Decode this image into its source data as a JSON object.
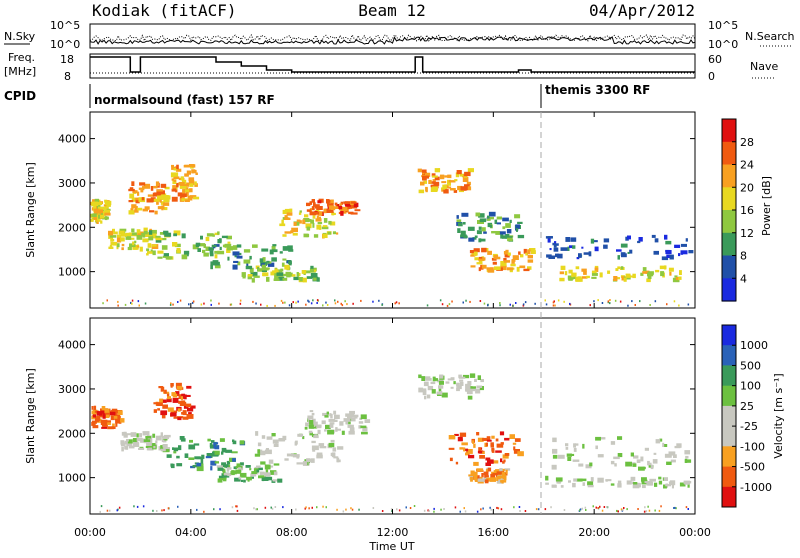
{
  "header": {
    "station": "Kodiak (fitACF)",
    "beam": "Beam 12",
    "date": "04/Apr/2012"
  },
  "strip_labels": {
    "nsky": "N.Sky",
    "nsearch": "N.Search",
    "freq_line1": "Freq.",
    "freq_line2": "[MHz]",
    "nave": "Nave",
    "cpid": "CPID"
  },
  "strip_ticks": {
    "noise_left_top": "10^5",
    "noise_left_bottom": "10^0",
    "noise_right_top": "10^5",
    "noise_right_bottom": "10^0",
    "freq_top": "18",
    "freq_bottom": "8",
    "nave_top": "60",
    "nave_bottom": "0"
  },
  "cpid": {
    "mode1": "normalsound (fast) 157 RF",
    "mode2": "themis 3300 RF"
  },
  "chart_data": [
    {
      "type": "heatmap",
      "panel": "power",
      "ylabel": "Slant Range [km]",
      "colorbar_label": "Power [dB]",
      "colorbar_ticks": [
        "28",
        "24",
        "20",
        "16",
        "12",
        "8",
        "4"
      ],
      "colormap": [
        "#e01010",
        "#f05a10",
        "#f8a020",
        "#e8d820",
        "#8fc840",
        "#3a9a5a",
        "#2050a8",
        "#1a2ae0"
      ],
      "y_ticks": [
        "4000",
        "3000",
        "2000",
        "1000"
      ],
      "ylim": [
        180,
        4600
      ],
      "features": [
        {
          "t0": 0.0,
          "t1": 0.7,
          "r0": 2100,
          "r1": 2600,
          "level": 3
        },
        {
          "t0": 0.7,
          "t1": 2.5,
          "r0": 1500,
          "r1": 2000,
          "level": 3
        },
        {
          "t0": 1.5,
          "t1": 3.0,
          "r0": 2300,
          "r1": 3000,
          "level": 2
        },
        {
          "t0": 2.2,
          "t1": 5.5,
          "r0": 1300,
          "r1": 1900,
          "level": 4
        },
        {
          "t0": 3.2,
          "t1": 4.2,
          "r0": 2600,
          "r1": 3400,
          "level": 2
        },
        {
          "t0": 4.5,
          "t1": 8.0,
          "r0": 1100,
          "r1": 1600,
          "level": 5
        },
        {
          "t0": 6.0,
          "t1": 9.0,
          "r0": 800,
          "r1": 1100,
          "level": 4
        },
        {
          "t0": 7.5,
          "t1": 9.8,
          "r0": 1800,
          "r1": 2400,
          "level": 3
        },
        {
          "t0": 8.5,
          "t1": 10.5,
          "r0": 2300,
          "r1": 2600,
          "level": 1
        },
        {
          "t0": 13.0,
          "t1": 15.0,
          "r0": 2800,
          "r1": 3300,
          "level": 2
        },
        {
          "t0": 14.5,
          "t1": 17.0,
          "r0": 1700,
          "r1": 2300,
          "level": 5
        },
        {
          "t0": 15.0,
          "t1": 17.5,
          "r0": 1000,
          "r1": 1500,
          "level": 2
        },
        {
          "t0": 18.0,
          "t1": 24.0,
          "r0": 1300,
          "r1": 1800,
          "level": 6
        },
        {
          "t0": 18.5,
          "t1": 23.5,
          "r0": 800,
          "r1": 1100,
          "level": 3
        }
      ]
    },
    {
      "type": "heatmap",
      "panel": "velocity",
      "ylabel": "Slant Range [km]",
      "colorbar_label": "Velocity [m s⁻¹]",
      "colorbar_ticks": [
        "1000",
        "500",
        "100",
        "25",
        "-25",
        "-100",
        "-500",
        "-1000"
      ],
      "colormap": [
        "#1a2ae0",
        "#2a62b8",
        "#3a9a5a",
        "#6cc040",
        "#c8c8c0",
        "#c8c8c0",
        "#f8a020",
        "#f05a10",
        "#e01010"
      ],
      "y_ticks": [
        "4000",
        "3000",
        "2000",
        "1000"
      ],
      "ylim": [
        180,
        4600
      ],
      "features": [
        {
          "t0": 0.0,
          "t1": 1.2,
          "r0": 2100,
          "r1": 2600,
          "level": 7
        },
        {
          "t0": 1.2,
          "t1": 3.0,
          "r0": 1600,
          "r1": 2000,
          "level": 4
        },
        {
          "t0": 2.5,
          "t1": 4.0,
          "r0": 2300,
          "r1": 3100,
          "level": 7
        },
        {
          "t0": 3.0,
          "t1": 6.0,
          "r0": 1200,
          "r1": 1900,
          "level": 2
        },
        {
          "t0": 5.0,
          "t1": 7.5,
          "r0": 900,
          "r1": 1300,
          "level": 3
        },
        {
          "t0": 6.5,
          "t1": 10.0,
          "r0": 1300,
          "r1": 2000,
          "level": 4
        },
        {
          "t0": 8.5,
          "t1": 11.0,
          "r0": 2000,
          "r1": 2500,
          "level": 4
        },
        {
          "t0": 13.0,
          "t1": 15.5,
          "r0": 2800,
          "r1": 3300,
          "level": 4
        },
        {
          "t0": 14.2,
          "t1": 17.0,
          "r0": 1300,
          "r1": 2000,
          "level": 7
        },
        {
          "t0": 15.0,
          "t1": 16.5,
          "r0": 900,
          "r1": 1200,
          "level": 6
        },
        {
          "t0": 18.0,
          "t1": 24.0,
          "r0": 1200,
          "r1": 1900,
          "level": 4
        },
        {
          "t0": 18.0,
          "t1": 24.0,
          "r0": 800,
          "r1": 1000,
          "level": 4
        }
      ]
    }
  ],
  "x_ticks": [
    "00:00",
    "04:00",
    "08:00",
    "12:00",
    "16:00",
    "20:00",
    "00:00"
  ],
  "xlabel": "Time UT"
}
